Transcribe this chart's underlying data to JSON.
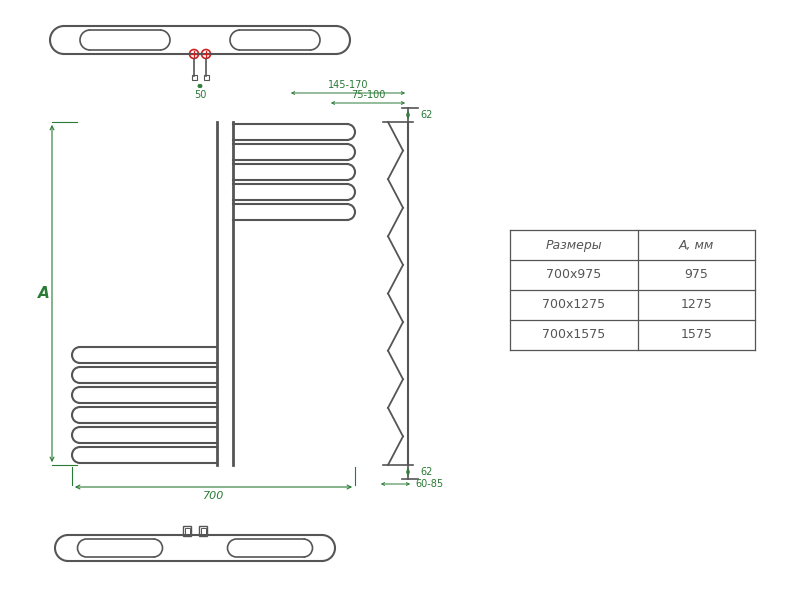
{
  "bg_color": "#ffffff",
  "line_color": "#555555",
  "green_color": "#2a7a35",
  "red_color": "#cc2222",
  "table_header": [
    "Размеры",
    "А, мм"
  ],
  "table_rows": [
    [
      "700х975",
      "975"
    ],
    [
      "700х1275",
      "1275"
    ],
    [
      "700х1575",
      "1575"
    ]
  ],
  "dim_A": "А",
  "dim_700": "700",
  "dim_50": "50",
  "dim_62_top": "62",
  "dim_62_bot": "62",
  "dim_145_170": "145-170",
  "dim_75_100": "75-100",
  "dim_60_85": "60-85"
}
